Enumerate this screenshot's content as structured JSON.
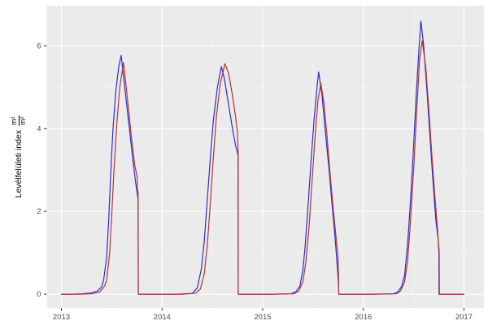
{
  "chart_data": {
    "type": "line",
    "title": "",
    "ylabel": "Levélfelületi index",
    "ylabel_unit_numerator": "m²",
    "ylabel_unit_denominator": "m²",
    "xlabel": "",
    "x_ticks": [
      2013,
      2014,
      2015,
      2016,
      2017
    ],
    "y_ticks": [
      0,
      2,
      4,
      6
    ],
    "x_minor_ticks": [
      2013.5,
      2014.5,
      2015.5,
      2016.5
    ],
    "y_minor_ticks": [
      1,
      3,
      5
    ],
    "xlim": [
      2012.8545,
      2017.1985
    ],
    "ylim": [
      -0.332,
      6.972
    ],
    "grid": "on",
    "legend": "none",
    "panel_bg": "#EBEBEB",
    "grid_major_color": "#FFFFFF",
    "grid_minor_color": "#F7F7F7",
    "tick_color": "#333333",
    "tick_label_color": "#4D4D4D",
    "series": [
      {
        "name": "blue-line",
        "color": "#2B2BD6",
        "points": [
          [
            2013.0,
            0
          ],
          [
            2013.1,
            0
          ],
          [
            2013.2,
            0.01
          ],
          [
            2013.3,
            0.03
          ],
          [
            2013.36,
            0.08
          ],
          [
            2013.4,
            0.18
          ],
          [
            2013.42,
            0.35
          ],
          [
            2013.45,
            0.9
          ],
          [
            2013.47,
            1.8
          ],
          [
            2013.49,
            2.9
          ],
          [
            2013.51,
            3.9
          ],
          [
            2013.54,
            4.9
          ],
          [
            2013.57,
            5.5
          ],
          [
            2013.594,
            5.77
          ],
          [
            2013.62,
            5.2
          ],
          [
            2013.65,
            4.55
          ],
          [
            2013.68,
            3.9
          ],
          [
            2013.71,
            3.25
          ],
          [
            2013.74,
            2.65
          ],
          [
            2013.762,
            2.3
          ],
          [
            2013.764,
            0
          ],
          [
            2013.85,
            0
          ],
          [
            2014.0,
            0
          ],
          [
            2014.15,
            0
          ],
          [
            2014.3,
            0.02
          ],
          [
            2014.35,
            0.15
          ],
          [
            2014.39,
            0.6
          ],
          [
            2014.42,
            1.3
          ],
          [
            2014.45,
            2.3
          ],
          [
            2014.48,
            3.3
          ],
          [
            2014.51,
            4.2
          ],
          [
            2014.55,
            5.0
          ],
          [
            2014.59,
            5.5
          ],
          [
            2014.62,
            5.2
          ],
          [
            2014.66,
            4.6
          ],
          [
            2014.7,
            4.0
          ],
          [
            2014.73,
            3.6
          ],
          [
            2014.756,
            3.35
          ],
          [
            2014.757,
            0
          ],
          [
            2014.9,
            0
          ],
          [
            2015.1,
            0
          ],
          [
            2015.28,
            0.01
          ],
          [
            2015.33,
            0.06
          ],
          [
            2015.37,
            0.2
          ],
          [
            2015.4,
            0.6
          ],
          [
            2015.42,
            1.1
          ],
          [
            2015.45,
            2.1
          ],
          [
            2015.48,
            3.2
          ],
          [
            2015.51,
            4.2
          ],
          [
            2015.54,
            5.0
          ],
          [
            2015.556,
            5.37
          ],
          [
            2015.59,
            4.8
          ],
          [
            2015.62,
            4.0
          ],
          [
            2015.66,
            3.0
          ],
          [
            2015.69,
            2.15
          ],
          [
            2015.72,
            1.35
          ],
          [
            2015.745,
            0.55
          ],
          [
            2015.755,
            0.2
          ],
          [
            2015.756,
            0
          ],
          [
            2015.9,
            0
          ],
          [
            2016.1,
            0
          ],
          [
            2016.3,
            0.01
          ],
          [
            2016.34,
            0.05
          ],
          [
            2016.38,
            0.18
          ],
          [
            2016.41,
            0.45
          ],
          [
            2016.44,
            1.2
          ],
          [
            2016.47,
            2.3
          ],
          [
            2016.5,
            3.6
          ],
          [
            2016.53,
            5.0
          ],
          [
            2016.555,
            6.0
          ],
          [
            2016.572,
            6.6
          ],
          [
            2016.6,
            6.0
          ],
          [
            2016.63,
            5.0
          ],
          [
            2016.66,
            3.9
          ],
          [
            2016.69,
            2.8
          ],
          [
            2016.72,
            1.8
          ],
          [
            2016.745,
            1.3
          ],
          [
            2016.751,
            1.0
          ],
          [
            2016.752,
            0
          ],
          [
            2016.9,
            0
          ],
          [
            2017.0,
            0
          ]
        ]
      },
      {
        "name": "red-line",
        "color": "#B23430",
        "points": [
          [
            2013.0,
            0
          ],
          [
            2013.18,
            0
          ],
          [
            2013.3,
            0.01
          ],
          [
            2013.38,
            0.05
          ],
          [
            2013.43,
            0.2
          ],
          [
            2013.45,
            0.35
          ],
          [
            2013.48,
            1.0
          ],
          [
            2013.5,
            1.9
          ],
          [
            2013.52,
            2.9
          ],
          [
            2013.55,
            4.1
          ],
          [
            2013.58,
            5.0
          ],
          [
            2013.617,
            5.6
          ],
          [
            2013.64,
            5.1
          ],
          [
            2013.67,
            4.4
          ],
          [
            2013.7,
            3.7
          ],
          [
            2013.73,
            3.1
          ],
          [
            2013.752,
            2.85
          ],
          [
            2013.755,
            2.55
          ],
          [
            2013.762,
            2.45
          ],
          [
            2013.764,
            0
          ],
          [
            2013.9,
            0
          ],
          [
            2014.0,
            0
          ],
          [
            2014.2,
            0
          ],
          [
            2014.33,
            0.02
          ],
          [
            2014.38,
            0.12
          ],
          [
            2014.42,
            0.5
          ],
          [
            2014.45,
            1.2
          ],
          [
            2014.48,
            2.2
          ],
          [
            2014.51,
            3.3
          ],
          [
            2014.54,
            4.3
          ],
          [
            2014.58,
            5.1
          ],
          [
            2014.625,
            5.57
          ],
          [
            2014.66,
            5.35
          ],
          [
            2014.7,
            4.8
          ],
          [
            2014.73,
            4.3
          ],
          [
            2014.75,
            3.9
          ],
          [
            2014.756,
            3.4
          ],
          [
            2014.757,
            0
          ],
          [
            2014.9,
            0
          ],
          [
            2015.1,
            0
          ],
          [
            2015.31,
            0.01
          ],
          [
            2015.36,
            0.08
          ],
          [
            2015.4,
            0.3
          ],
          [
            2015.43,
            0.8
          ],
          [
            2015.46,
            1.6
          ],
          [
            2015.49,
            2.7
          ],
          [
            2015.52,
            3.8
          ],
          [
            2015.55,
            4.7
          ],
          [
            2015.578,
            5.1
          ],
          [
            2015.61,
            4.6
          ],
          [
            2015.64,
            3.8
          ],
          [
            2015.67,
            2.9
          ],
          [
            2015.7,
            2.1
          ],
          [
            2015.73,
            1.35
          ],
          [
            2015.748,
            0.92
          ],
          [
            2015.753,
            0.5
          ],
          [
            2015.756,
            0
          ],
          [
            2015.9,
            0
          ],
          [
            2016.1,
            0
          ],
          [
            2016.33,
            0.01
          ],
          [
            2016.37,
            0.08
          ],
          [
            2016.41,
            0.3
          ],
          [
            2016.44,
            0.8
          ],
          [
            2016.47,
            1.8
          ],
          [
            2016.5,
            3.0
          ],
          [
            2016.53,
            4.4
          ],
          [
            2016.56,
            5.7
          ],
          [
            2016.585,
            6.12
          ],
          [
            2016.62,
            5.5
          ],
          [
            2016.65,
            4.5
          ],
          [
            2016.68,
            3.4
          ],
          [
            2016.71,
            2.4
          ],
          [
            2016.73,
            1.8
          ],
          [
            2016.75,
            1.15
          ],
          [
            2016.754,
            1.05
          ],
          [
            2016.756,
            0
          ],
          [
            2016.9,
            0
          ],
          [
            2017.0,
            0
          ]
        ]
      }
    ]
  }
}
